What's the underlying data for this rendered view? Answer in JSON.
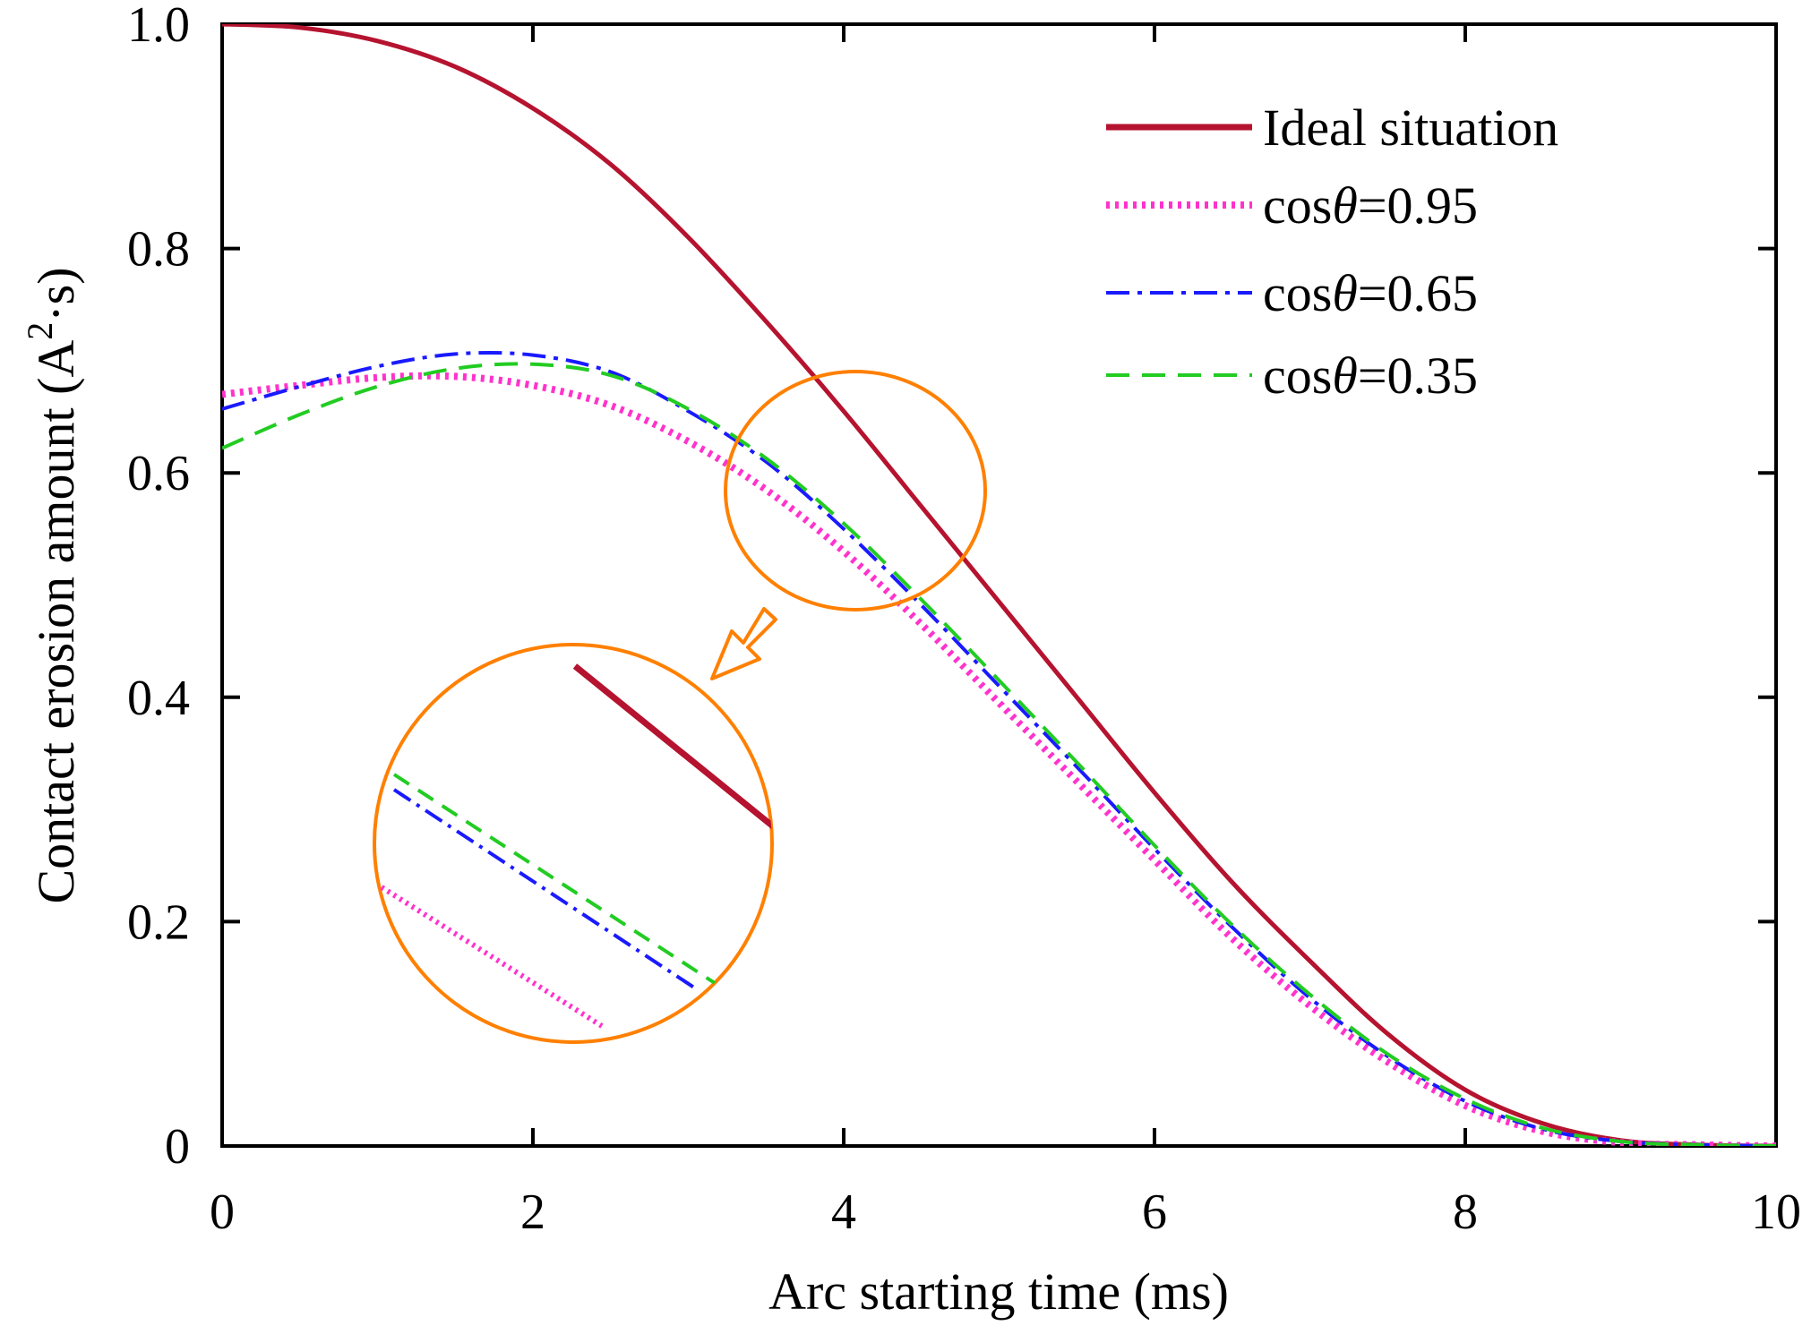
{
  "chart_data": {
    "type": "line",
    "title": "",
    "xlabel": "Arc starting time (ms)",
    "ylabel_main": "Contact erosion amount (A",
    "ylabel_sup": "2",
    "ylabel_end": "·s)",
    "xlim": [
      0,
      10
    ],
    "ylim": [
      0,
      1.0
    ],
    "xticks": [
      0,
      2,
      4,
      6,
      8,
      10
    ],
    "xtick_labels": [
      "0",
      "2",
      "4",
      "6",
      "8",
      "10"
    ],
    "yticks": [
      0,
      0.2,
      0.4,
      0.6,
      0.8,
      1.0
    ],
    "ytick_labels": [
      "0",
      "0.2",
      "0.4",
      "0.6",
      "0.8",
      "1.0"
    ],
    "grid": false,
    "legend_position": "top-right",
    "series": [
      {
        "name": "Ideal situation",
        "label_parts": [
          "Ideal situation",
          "",
          ""
        ],
        "color": "#b5132f",
        "style": "solid",
        "x": [
          0,
          0.5,
          1,
          1.5,
          2,
          2.5,
          3,
          3.5,
          4,
          4.5,
          5,
          5.5,
          6,
          6.5,
          7,
          7.5,
          8,
          8.5,
          9,
          9.5,
          10
        ],
        "y": [
          1.0,
          0.997,
          0.985,
          0.962,
          0.925,
          0.875,
          0.81,
          0.735,
          0.655,
          0.57,
          0.485,
          0.4,
          0.315,
          0.235,
          0.165,
          0.1,
          0.05,
          0.02,
          0.005,
          0.001,
          0.0
        ]
      },
      {
        "name": "cosθ=0.95",
        "label_parts": [
          "cos",
          "θ",
          "=0.95"
        ],
        "color": "#ff33cc",
        "style": "dotted",
        "x": [
          0,
          0.5,
          1,
          1.5,
          2,
          2.5,
          3,
          3.5,
          4,
          4.5,
          5,
          5.5,
          6,
          6.5,
          7,
          7.5,
          8,
          8.5,
          9,
          9.5,
          10
        ],
        "y": [
          0.67,
          0.678,
          0.685,
          0.686,
          0.678,
          0.66,
          0.628,
          0.585,
          0.53,
          0.465,
          0.395,
          0.325,
          0.255,
          0.185,
          0.125,
          0.075,
          0.036,
          0.013,
          0.003,
          0.001,
          0.0
        ]
      },
      {
        "name": "cosθ=0.65",
        "label_parts": [
          "cos",
          "θ",
          "=0.65"
        ],
        "color": "#1a1aff",
        "style": "dashdot",
        "x": [
          0,
          0.5,
          1,
          1.5,
          2,
          2.5,
          3,
          3.5,
          4,
          4.5,
          5,
          5.5,
          6,
          6.5,
          7,
          7.5,
          8,
          8.5,
          9,
          9.5,
          10
        ],
        "y": [
          0.657,
          0.677,
          0.695,
          0.706,
          0.705,
          0.69,
          0.655,
          0.61,
          0.55,
          0.482,
          0.41,
          0.338,
          0.265,
          0.195,
          0.132,
          0.08,
          0.04,
          0.015,
          0.004,
          0.001,
          0.0
        ]
      },
      {
        "name": "cosθ=0.35",
        "label_parts": [
          "cos",
          "θ",
          "=0.35"
        ],
        "color": "#22cc22",
        "style": "dashed",
        "x": [
          0,
          0.5,
          1,
          1.5,
          2,
          2.5,
          3,
          3.5,
          4,
          4.5,
          5,
          5.5,
          6,
          6.5,
          7,
          7.5,
          8,
          8.5,
          9,
          9.5,
          10
        ],
        "y": [
          0.622,
          0.652,
          0.677,
          0.693,
          0.697,
          0.687,
          0.657,
          0.613,
          0.555,
          0.487,
          0.415,
          0.342,
          0.268,
          0.197,
          0.135,
          0.082,
          0.042,
          0.016,
          0.004,
          0.001,
          0.0
        ]
      }
    ]
  },
  "annotation": {
    "circle_color": "#ff8000",
    "arrow_color": "#ff8000"
  }
}
